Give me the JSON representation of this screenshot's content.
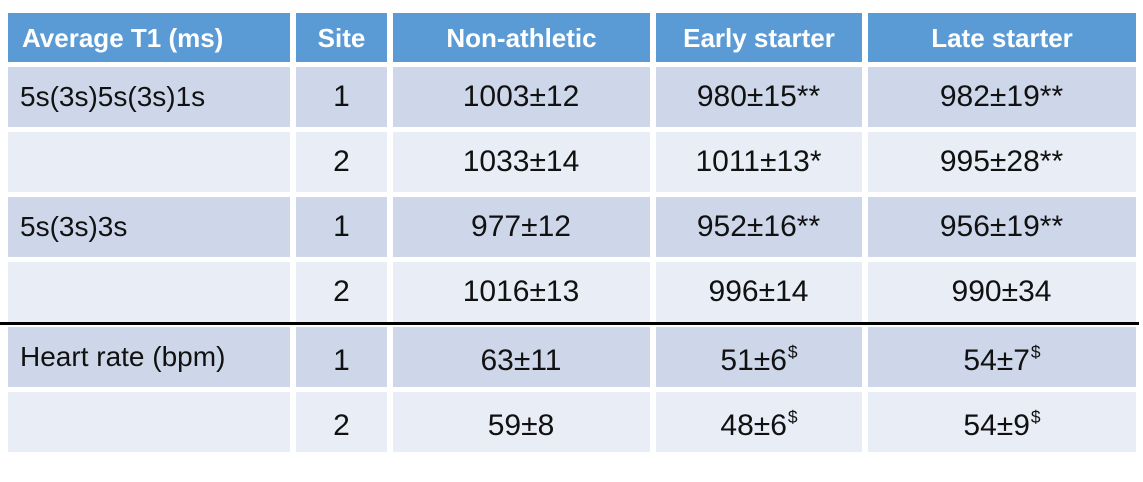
{
  "table": {
    "headers": [
      {
        "label": "Average T1 (ms)"
      },
      {
        "label": "Site"
      },
      {
        "label": "Non-athletic"
      },
      {
        "label": "Early starter"
      },
      {
        "label": "Late starter"
      }
    ],
    "rows": [
      {
        "cells": [
          {
            "text": "5s(3s)5s(3s)1s",
            "sup": ""
          },
          {
            "text": "1",
            "sup": ""
          },
          {
            "text": "1003±12",
            "sup": ""
          },
          {
            "text": "980±15**",
            "sup": ""
          },
          {
            "text": "982±19**",
            "sup": ""
          }
        ]
      },
      {
        "cells": [
          {
            "text": "",
            "sup": ""
          },
          {
            "text": "2",
            "sup": ""
          },
          {
            "text": "1033±14",
            "sup": ""
          },
          {
            "text": "1011±13*",
            "sup": ""
          },
          {
            "text": "995±28**",
            "sup": ""
          }
        ]
      },
      {
        "cells": [
          {
            "text": "5s(3s)3s",
            "sup": ""
          },
          {
            "text": "1",
            "sup": ""
          },
          {
            "text": "977±12",
            "sup": ""
          },
          {
            "text": "952±16**",
            "sup": ""
          },
          {
            "text": "956±19**",
            "sup": ""
          }
        ]
      },
      {
        "cells": [
          {
            "text": "",
            "sup": ""
          },
          {
            "text": "2",
            "sup": ""
          },
          {
            "text": "1016±13",
            "sup": ""
          },
          {
            "text": "996±14",
            "sup": ""
          },
          {
            "text": "990±34",
            "sup": ""
          }
        ]
      },
      {
        "cells": [
          {
            "text": "Heart rate (bpm)",
            "sup": ""
          },
          {
            "text": "1",
            "sup": ""
          },
          {
            "text": "63±11",
            "sup": ""
          },
          {
            "text": "51±6",
            "sup": "$"
          },
          {
            "text": "54±7",
            "sup": "$"
          }
        ]
      },
      {
        "cells": [
          {
            "text": "",
            "sup": ""
          },
          {
            "text": "2",
            "sup": ""
          },
          {
            "text": "59±8",
            "sup": ""
          },
          {
            "text": "48±6",
            "sup": "$"
          },
          {
            "text": "54±9",
            "sup": "$"
          }
        ]
      }
    ]
  },
  "colors": {
    "header_bg": "#5b9bd5",
    "header_text": "#ffffff",
    "row_band_dark": "#cdd7e9",
    "row_band_light": "#e9edf6",
    "body_text": "#111111",
    "section_divider": "#000000",
    "canvas_bg": "#ffffff"
  }
}
